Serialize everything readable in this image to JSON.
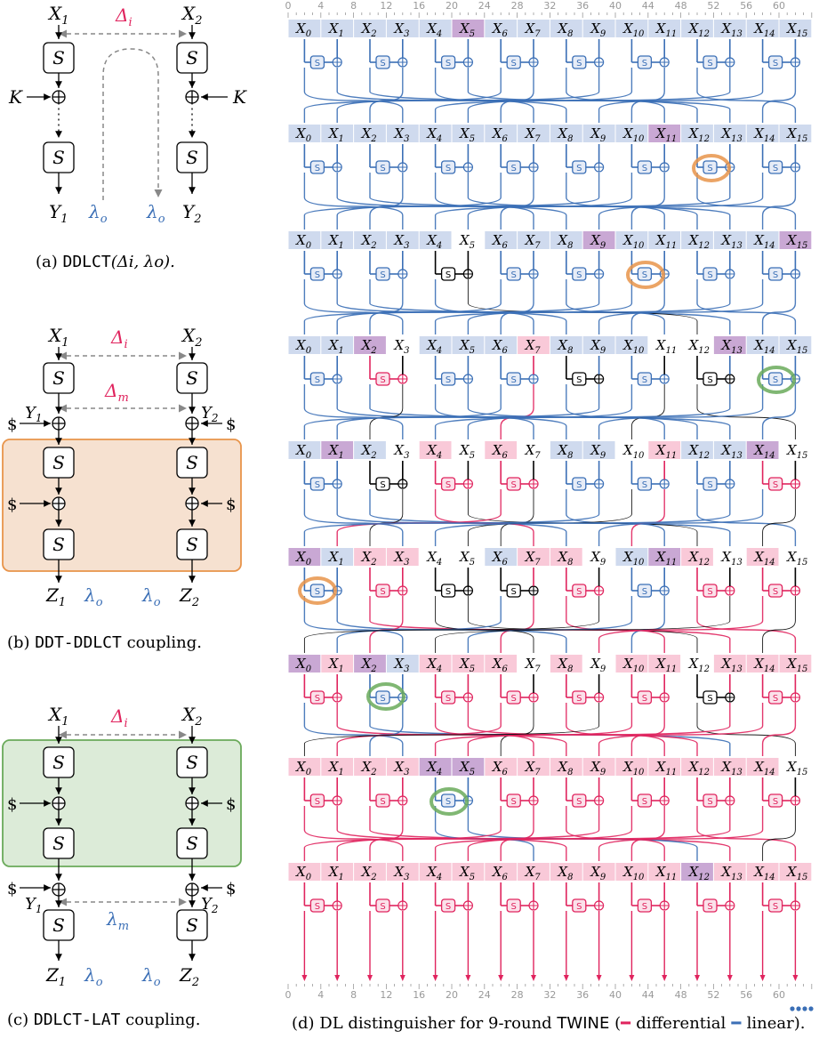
{
  "colors": {
    "differential": "#e0245e",
    "linear": "#3b6fb6",
    "linear_light": "#cfdaee",
    "diff_light": "#f9c9d8",
    "both": "#c9a8d4",
    "orange_box": "#f6e1d0",
    "orange_border": "#e8944a",
    "green_box": "#dcebd8",
    "green_border": "#6aaa5a",
    "dash": "#888888"
  },
  "panel_a": {
    "x1": "X",
    "x1_sub": "1",
    "x2": "X",
    "x2_sub": "2",
    "delta_i": "Δ",
    "delta_i_sub": "i",
    "k_left": "K",
    "k_right": "K",
    "y1": "Y",
    "y1_sub": "1",
    "y2": "Y",
    "y2_sub": "2",
    "lambda_o": "λ",
    "lambda_o_sub": "o",
    "sbox": "S",
    "caption_prefix": "(a) ",
    "caption_mono": "DDLCT",
    "caption_rest": "(Δi, λo)."
  },
  "panel_b": {
    "x1": "X",
    "x1_sub": "1",
    "x2": "X",
    "x2_sub": "2",
    "delta_i": "Δ",
    "delta_i_sub": "i",
    "delta_m": "Δ",
    "delta_m_sub": "m",
    "y1": "Y",
    "y1_sub": "1",
    "y2": "Y",
    "y2_sub": "2",
    "dollar": "$",
    "z1": "Z",
    "z1_sub": "1",
    "z2": "Z",
    "z2_sub": "2",
    "lambda_o": "λ",
    "lambda_o_sub": "o",
    "sbox": "S",
    "caption_prefix": "(b) ",
    "caption_mono": "DDT-DDLCT",
    "caption_rest": " coupling."
  },
  "panel_c": {
    "x1": "X",
    "x1_sub": "1",
    "x2": "X",
    "x2_sub": "2",
    "delta_i": "Δ",
    "delta_i_sub": "i",
    "dollar": "$",
    "y1": "Y",
    "y1_sub": "1",
    "y2": "Y",
    "y2_sub": "2",
    "lambda_m": "λ",
    "lambda_m_sub": "m",
    "z1": "Z",
    "z1_sub": "1",
    "z2": "Z",
    "z2_sub": "2",
    "lambda_o": "λ",
    "lambda_o_sub": "o",
    "sbox": "S",
    "caption_prefix": "(c) ",
    "caption_mono": "DDLCT-LAT",
    "caption_rest": " coupling."
  },
  "panel_d": {
    "ticks": [
      "0",
      "4",
      "8",
      "12",
      "16",
      "20",
      "24",
      "28",
      "32",
      "36",
      "40",
      "44",
      "48",
      "52",
      "56",
      "60"
    ],
    "cell_prefix": "X",
    "rounds": [
      {
        "cells": [
          "l",
          "l",
          "l",
          "l",
          "l",
          "b",
          "l",
          "l",
          "l",
          "l",
          "l",
          "l",
          "l",
          "l",
          "l",
          "l"
        ],
        "sboxes": [
          "l",
          "l",
          "l",
          "l",
          "l",
          "l",
          "l",
          "l"
        ]
      },
      {
        "cells": [
          "l",
          "l",
          "l",
          "l",
          "l",
          "l",
          "l",
          "l",
          "l",
          "l",
          "l",
          "b",
          "l",
          "l",
          "l",
          "l"
        ],
        "sboxes": [
          "l",
          "l",
          "l",
          "l",
          "l",
          "l",
          "l",
          "l"
        ]
      },
      {
        "cells": [
          "l",
          "l",
          "l",
          "l",
          "l",
          "n",
          "l",
          "l",
          "l",
          "b",
          "l",
          "l",
          "l",
          "l",
          "l",
          "b"
        ],
        "sboxes": [
          "l",
          "l",
          "n",
          "l",
          "l",
          "l",
          "l",
          "l"
        ]
      },
      {
        "cells": [
          "l",
          "l",
          "b",
          "n",
          "l",
          "l",
          "l",
          "d",
          "l",
          "l",
          "l",
          "n",
          "n",
          "b",
          "l",
          "l"
        ],
        "sboxes": [
          "l",
          "d",
          "l",
          "l",
          "n",
          "l",
          "n",
          "l"
        ]
      },
      {
        "cells": [
          "l",
          "b",
          "l",
          "n",
          "d",
          "n",
          "d",
          "n",
          "l",
          "l",
          "n",
          "d",
          "l",
          "l",
          "b",
          "n"
        ],
        "sboxes": [
          "l",
          "n",
          "d",
          "d",
          "l",
          "l",
          "l",
          "d"
        ]
      },
      {
        "cells": [
          "b",
          "l",
          "d",
          "d",
          "n",
          "n",
          "l",
          "d",
          "d",
          "n",
          "l",
          "b",
          "d",
          "n",
          "d",
          "n"
        ],
        "sboxes": [
          "l",
          "d",
          "n",
          "n",
          "d",
          "l",
          "d",
          "d"
        ]
      },
      {
        "cells": [
          "b",
          "d",
          "b",
          "l",
          "d",
          "d",
          "d",
          "n",
          "d",
          "n",
          "d",
          "d",
          "n",
          "d",
          "d",
          "d"
        ],
        "sboxes": [
          "d",
          "l",
          "d",
          "d",
          "d",
          "d",
          "n",
          "d"
        ]
      },
      {
        "cells": [
          "d",
          "d",
          "d",
          "d",
          "b",
          "b",
          "d",
          "d",
          "d",
          "d",
          "d",
          "d",
          "d",
          "d",
          "d",
          "n"
        ],
        "sboxes": [
          "d",
          "d",
          "l",
          "d",
          "d",
          "d",
          "d",
          "d"
        ]
      },
      {
        "cells": [
          "d",
          "d",
          "d",
          "d",
          "d",
          "d",
          "d",
          "d",
          "d",
          "d",
          "d",
          "d",
          "b",
          "d",
          "d",
          "d"
        ],
        "sboxes": [
          "d",
          "d",
          "d",
          "d",
          "d",
          "d",
          "d",
          "d"
        ]
      }
    ],
    "caption_prefix": "(d) DL distinguisher for 9-round ",
    "caption_twine": "TWINE",
    "caption_mid": " (",
    "caption_diff": "differential",
    "caption_lin": "linear",
    "caption_end": ")."
  }
}
